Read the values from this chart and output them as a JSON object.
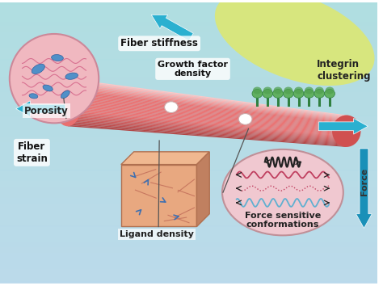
{
  "bg_color": "#a8d8e8",
  "labels": {
    "porosity": "Porosity",
    "fiber_stiffness": "Fiber stiffness",
    "growth_factor": "Growth factor\ndensity",
    "integrin": "Integrin\nclustering",
    "fiber_strain": "Fiber\nstrain",
    "ligand_density": "Ligand density",
    "force_sensitive": "Force sensitive\nconformations",
    "force": "Force"
  },
  "fiber_color": "#e87070",
  "fiber_highlight": "#f5a0a0",
  "fiber_dark": "#c05050",
  "arrow_color": "#2ab0d0",
  "arrow_down_color": "#1a90b8",
  "porosity_circle_color": "#f0b8c0",
  "force_oval_color": "#f0c8d0",
  "integrin_yellow": "#dde870",
  "integrin_green": "#50a050",
  "ligand_box_color": "#e8a880",
  "ligand_blue": "#4080c0"
}
